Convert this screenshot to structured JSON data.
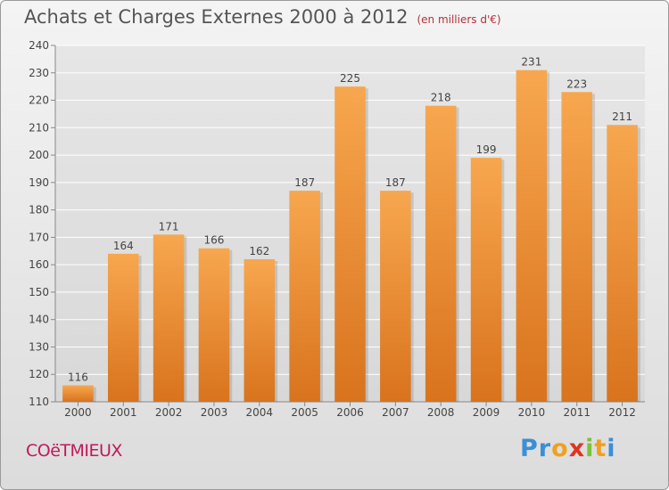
{
  "title": "Achats et Charges Externes 2000 à 2012",
  "unit_note": "(en milliers d'€)",
  "commune": "COëTMIEUX",
  "logo": {
    "letters": [
      "P",
      "r",
      "o",
      "x",
      "i",
      "t",
      "i"
    ],
    "colors": [
      "#3a8fd6",
      "#3a8fd6",
      "#f0a020",
      "#e0331f",
      "#7cc23a",
      "#f0a020",
      "#3a8fd6"
    ]
  },
  "colors": {
    "bar_top": "#f7a74f",
    "bar_bottom": "#d9731d",
    "grid": "#ffffff",
    "text": "#444444"
  },
  "chart_data": {
    "type": "bar",
    "title": "Achats et Charges Externes 2000 à 2012",
    "categories": [
      "2000",
      "2001",
      "2002",
      "2003",
      "2004",
      "2005",
      "2006",
      "2007",
      "2008",
      "2009",
      "2010",
      "2011",
      "2012"
    ],
    "values": [
      116,
      164,
      171,
      166,
      162,
      187,
      225,
      187,
      218,
      199,
      231,
      223,
      211
    ],
    "ylim": [
      110,
      240
    ],
    "yticks": [
      110,
      120,
      130,
      140,
      150,
      160,
      170,
      180,
      190,
      200,
      210,
      220,
      230,
      240
    ],
    "grid": true,
    "legend": "none",
    "xlabel": "",
    "ylabel": ""
  }
}
